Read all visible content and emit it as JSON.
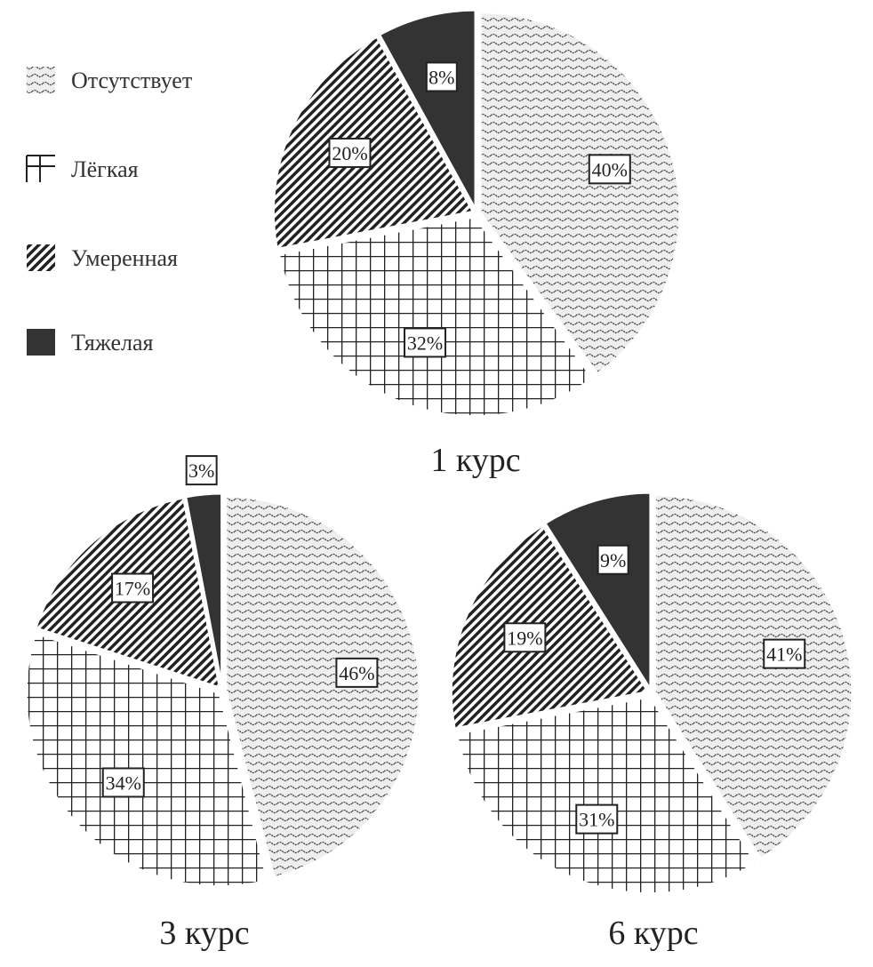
{
  "chart_data": {
    "type": "pie",
    "legend": {
      "placement": "top-left",
      "entries": [
        {
          "label": "Отсутствует",
          "pattern": "wave"
        },
        {
          "label": "Лёгкая",
          "pattern": "grid"
        },
        {
          "label": "Умеренная",
          "pattern": "diagonal"
        },
        {
          "label": "Тяжелая",
          "pattern": "solid",
          "color": "#333333"
        }
      ]
    },
    "categories": [
      "Отсутствует",
      "Лёгкая",
      "Умеренная",
      "Тяжелая"
    ],
    "pies": [
      {
        "title": "1 курс",
        "values": [
          40,
          32,
          20,
          8
        ],
        "labels": [
          "40%",
          "32%",
          "20%",
          "8%"
        ]
      },
      {
        "title": "3 курс",
        "values": [
          46,
          34,
          17,
          3
        ],
        "labels": [
          "46%",
          "34%",
          "17%",
          "3%"
        ]
      },
      {
        "title": "6 курс",
        "values": [
          41,
          31,
          19,
          9
        ],
        "labels": [
          "41%",
          "31%",
          "19%",
          "9%"
        ]
      }
    ]
  }
}
